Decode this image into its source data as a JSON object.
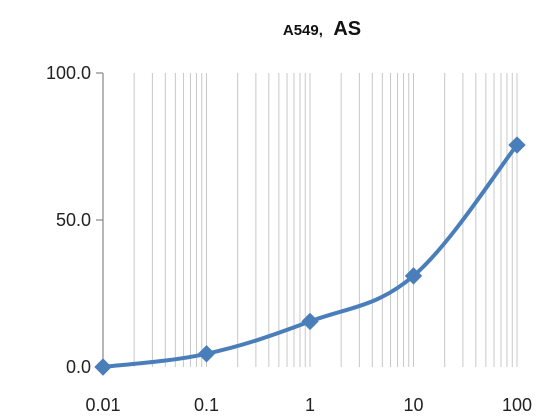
{
  "chart_data": {
    "type": "line",
    "title_parts": [
      "A549,",
      "AS"
    ],
    "xlabel": "",
    "ylabel": "",
    "x_scale": "log",
    "x": [
      0.01,
      0.1,
      1,
      10,
      100
    ],
    "xlim": [
      0.01,
      100
    ],
    "x_tick_labels": [
      "0.01",
      "0.1",
      "1",
      "10",
      "100"
    ],
    "ylim": [
      0,
      100
    ],
    "y_ticks": [
      0,
      50,
      100
    ],
    "y_tick_labels": [
      "0.0",
      "50.0",
      "100.0"
    ],
    "series": [
      {
        "values": [
          0.0,
          4.5,
          15.5,
          31.0,
          75.5
        ],
        "color": "#4a7ebb",
        "marker": "diamond",
        "smooth": true
      }
    ],
    "grid": {
      "vertical_minor": true,
      "horizontal": false,
      "color": "#c8c8c8"
    },
    "legend": "none"
  }
}
